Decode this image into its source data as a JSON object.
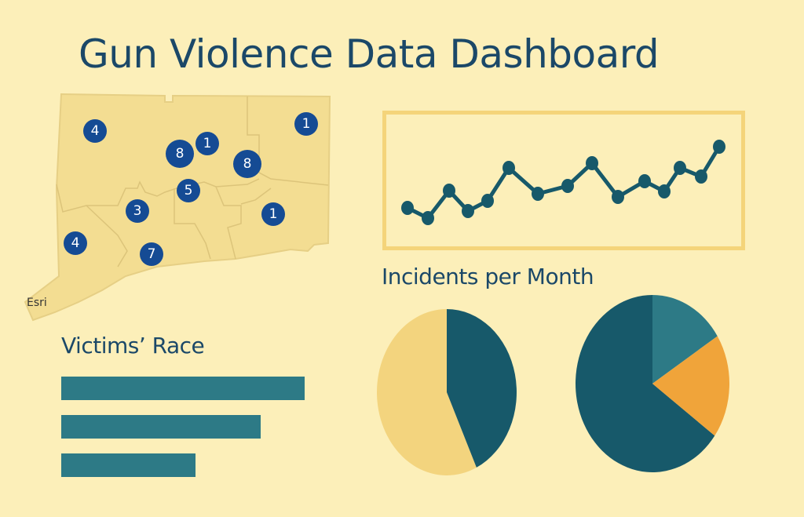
{
  "title": "Gun Violence Data Dashboard",
  "map": {
    "attribution": "Esri",
    "marker_color": "#154b94",
    "markers": [
      {
        "count": "4"
      },
      {
        "count": "8"
      },
      {
        "count": "1"
      },
      {
        "count": "1"
      },
      {
        "count": "8"
      },
      {
        "count": "5"
      },
      {
        "count": "3"
      },
      {
        "count": "1"
      },
      {
        "count": "4"
      },
      {
        "count": "7"
      }
    ]
  },
  "chart_data": [
    {
      "type": "line",
      "title": "Incidents per Month",
      "color": "#17596a",
      "values": [
        2.5,
        1.2,
        4.7,
        2.1,
        3.4,
        7.6,
        4.3,
        5.3,
        8.2,
        3.9,
        5.9,
        4.6,
        7.6,
        6.5,
        10.3
      ],
      "grid": false
    },
    {
      "type": "bar",
      "orientation": "horizontal",
      "title": "Victims’ Race",
      "color": "#2d7a86",
      "values": [
        100,
        82,
        55
      ]
    },
    {
      "type": "pie",
      "values": [
        57,
        43
      ],
      "colors": [
        "#f3d47e",
        "#17596a"
      ]
    },
    {
      "type": "pie",
      "values": [
        65,
        16,
        19
      ],
      "colors": [
        "#17596a",
        "#2d7a86",
        "#f0a43a"
      ]
    }
  ]
}
